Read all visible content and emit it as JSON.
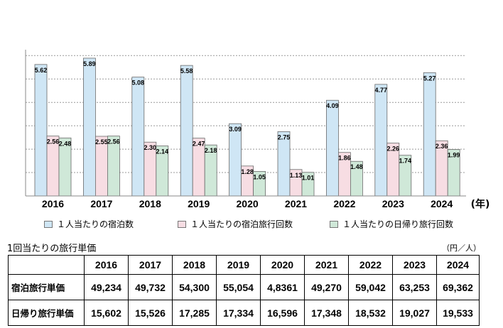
{
  "chart_data": {
    "type": "bar",
    "categories": [
      "2016",
      "2017",
      "2018",
      "2019",
      "2020",
      "2021",
      "2022",
      "2023",
      "2024"
    ],
    "x_unit_label": "(年)",
    "series": [
      {
        "name": "１人当たりの宿泊数",
        "color": "#cfe6f5",
        "values": [
          5.62,
          5.89,
          5.08,
          5.58,
          3.09,
          2.75,
          4.09,
          4.77,
          5.27
        ],
        "labels": [
          "5.62",
          "5.89",
          "5.08",
          "5.58",
          "3.09",
          "2.75",
          "4.09",
          "4.77",
          "5.27"
        ]
      },
      {
        "name": "１人当たりの宿泊旅行回数",
        "color": "#f7dde3",
        "values": [
          2.56,
          2.55,
          2.3,
          2.47,
          1.28,
          1.13,
          1.86,
          2.26,
          2.36
        ],
        "labels": [
          "2.56",
          "2.55",
          "2.30",
          "2.47",
          "1.28",
          "1.13",
          "1.86",
          "2.26",
          "2.36"
        ]
      },
      {
        "name": "１人当たりの日帰り旅行回数",
        "color": "#cfe8d8",
        "values": [
          2.48,
          2.56,
          2.14,
          2.18,
          1.05,
          1.01,
          1.48,
          1.74,
          1.99
        ],
        "labels": [
          "2.48",
          "2.56",
          "2.14",
          "2.18",
          "1.05",
          "1.01",
          "1.48",
          "1.74",
          "1.99"
        ]
      }
    ],
    "ylim": [
      0,
      6.5
    ],
    "gridlines": [
      1,
      2,
      3,
      4,
      5,
      6
    ],
    "grid": "dotted-horizontal",
    "legend_position": "bottom"
  },
  "table": {
    "title": "1回当たりの旅行単価",
    "unit": "（円／人）",
    "headers": [
      "2016",
      "2017",
      "2018",
      "2019",
      "2020",
      "2021",
      "2022",
      "2023",
      "2024"
    ],
    "rows": [
      {
        "label": "宿泊旅行単価",
        "values": [
          "49,234",
          "49,732",
          "54,300",
          "55,054",
          "4,8361",
          "49,270",
          "59,042",
          "63,253",
          "69,362"
        ]
      },
      {
        "label": "日帰り旅行単価",
        "values": [
          "15,602",
          "15,526",
          "17,285",
          "17,334",
          "16,596",
          "17,348",
          "18,532",
          "19,027",
          "19,533"
        ]
      }
    ]
  }
}
